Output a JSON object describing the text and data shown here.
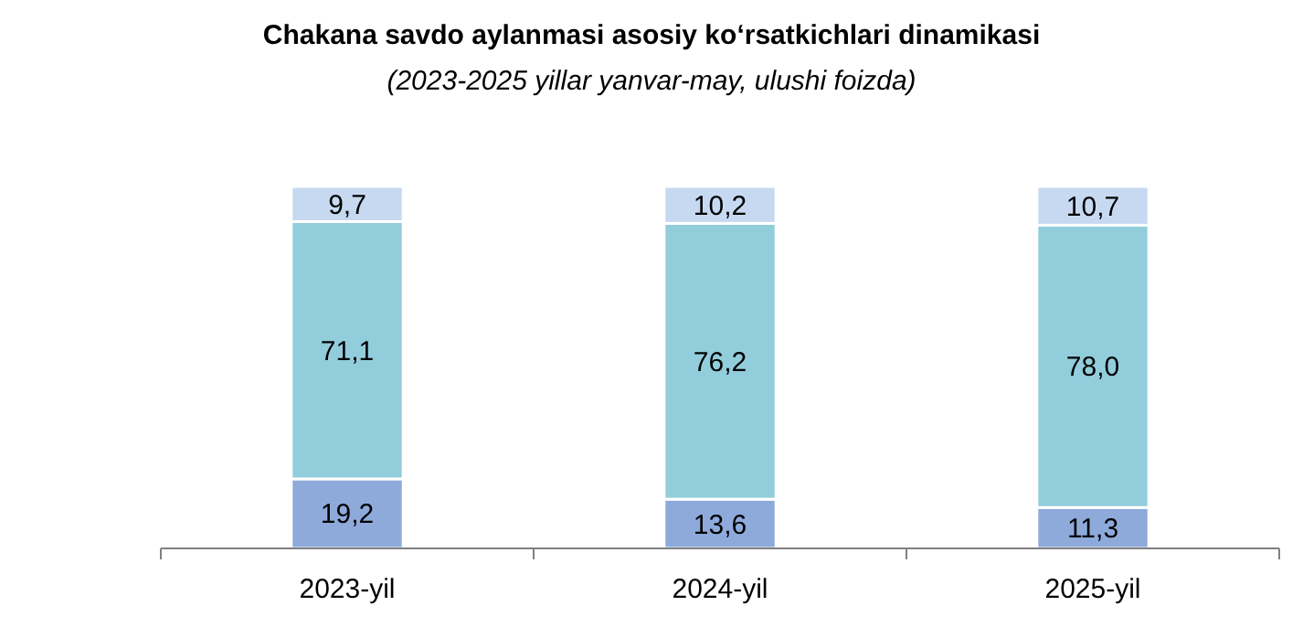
{
  "chart_data": {
    "type": "bar",
    "title": "Chakana savdo aylanmasi asosiy koʻrsatkichlari dinamikasi",
    "subtitle": "(2023-2025 yillar yanvar-may, ulushi foizda)",
    "categories": [
      "2023-yil",
      "2024-yil",
      "2025-yil"
    ],
    "stacked": true,
    "series": [
      {
        "color": "#8eaadb",
        "values": [
          19.2,
          13.6,
          11.3
        ],
        "value_labels": [
          "19,2",
          "13,6",
          "11,3"
        ]
      },
      {
        "color": "#92cddc",
        "values": [
          71.1,
          76.2,
          78.0
        ],
        "value_labels": [
          "71,1",
          "76,2",
          "78,0"
        ]
      },
      {
        "color": "#c6d9f1",
        "values": [
          9.7,
          10.2,
          10.7
        ],
        "value_labels": [
          "9,7",
          "10,2",
          "10,7"
        ]
      }
    ]
  }
}
